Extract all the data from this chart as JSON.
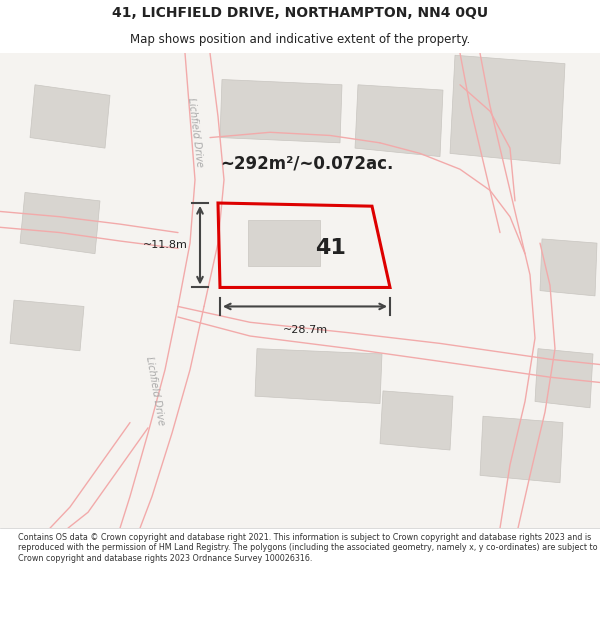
{
  "title_line1": "41, LICHFIELD DRIVE, NORTHAMPTON, NN4 0QU",
  "title_line2": "Map shows position and indicative extent of the property.",
  "footer_text": "Contains OS data © Crown copyright and database right 2021. This information is subject to Crown copyright and database rights 2023 and is reproduced with the permission of HM Land Registry. The polygons (including the associated geometry, namely x, y co-ordinates) are subject to Crown copyright and database rights 2023 Ordnance Survey 100026316.",
  "area_label": "~292m²/~0.072ac.",
  "plot_number": "41",
  "dim_width": "~28.7m",
  "dim_height": "~11.8m",
  "map_bg": "#f5f3f0",
  "road_color": "#f2aaaa",
  "plot_edge_color": "#dd0000",
  "building_fill": "#d8d5d0",
  "building_edge": "#c8c5c0",
  "text_color": "#222222",
  "road_label_color": "#aaaaaa",
  "dim_color": "#444444",
  "title_fontsize": 10,
  "subtitle_fontsize": 8.5,
  "area_fontsize": 12,
  "plot_label_fontsize": 16,
  "dim_fontsize": 8,
  "road_label_fontsize": 7,
  "footer_fontsize": 5.8
}
